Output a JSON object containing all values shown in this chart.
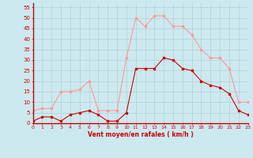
{
  "hours": [
    0,
    1,
    2,
    3,
    4,
    5,
    6,
    7,
    8,
    9,
    10,
    11,
    12,
    13,
    14,
    15,
    16,
    17,
    18,
    19,
    20,
    21,
    22,
    23
  ],
  "wind_mean": [
    1,
    3,
    3,
    1,
    4,
    5,
    6,
    4,
    1,
    1,
    5,
    26,
    26,
    26,
    31,
    30,
    26,
    25,
    20,
    18,
    17,
    14,
    6,
    4
  ],
  "wind_gust": [
    6,
    7,
    7,
    15,
    15,
    16,
    20,
    6,
    6,
    6,
    31,
    50,
    46,
    51,
    51,
    46,
    46,
    42,
    35,
    31,
    31,
    26,
    10,
    10
  ],
  "background_color": "#cce9f0",
  "grid_color": "#aacccc",
  "mean_color": "#cc0000",
  "gust_color": "#ff9999",
  "xlabel": "Vent moyen/en rafales ( km/h )",
  "ylabel_ticks": [
    0,
    5,
    10,
    15,
    20,
    25,
    30,
    35,
    40,
    45,
    50,
    55
  ],
  "ylim": [
    0,
    57
  ],
  "xlim": [
    0,
    23
  ]
}
